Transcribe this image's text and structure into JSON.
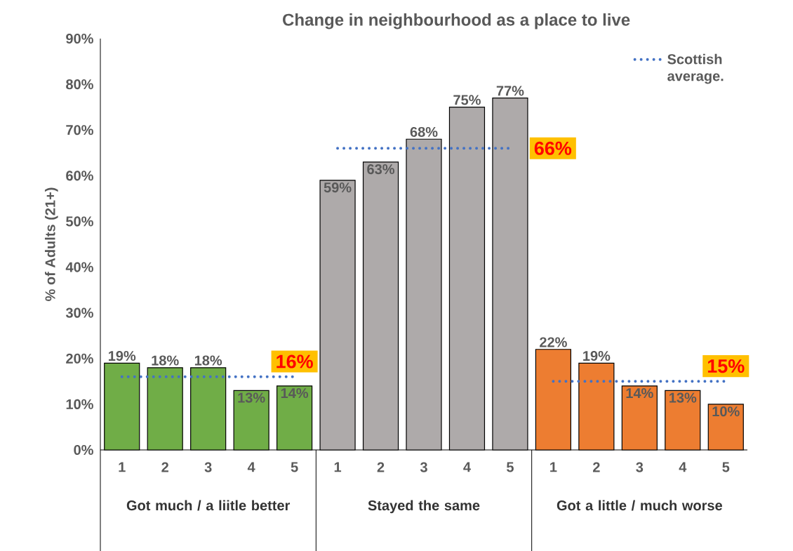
{
  "chart_data": {
    "type": "bar",
    "title": "Change in neighbourhood as a place to live",
    "ylabel": "% of Adults (21+)",
    "categories": [
      "1",
      "2",
      "3",
      "4",
      "5",
      "1",
      "2",
      "3",
      "4",
      "5",
      "1",
      "2",
      "3",
      "4",
      "5"
    ],
    "series": [
      {
        "values": [
          19,
          18,
          18,
          13,
          14,
          59,
          63,
          68,
          75,
          77,
          22,
          19,
          14,
          13,
          10
        ],
        "colors": [
          "#70ad47",
          "#70ad47",
          "#70ad47",
          "#70ad47",
          "#70ad47",
          "#aeaaaa",
          "#aeaaaa",
          "#aeaaaa",
          "#aeaaaa",
          "#aeaaaa",
          "#ed7d31",
          "#ed7d31",
          "#ed7d31",
          "#ed7d31",
          "#ed7d31"
        ],
        "value_labels": [
          "19%",
          "18%",
          "18%",
          "13%",
          "14%",
          "59%",
          "63%",
          "68%",
          "75%",
          "77%",
          "22%",
          "19%",
          "14%",
          "13%",
          "10%"
        ]
      },
      {
        "type": "line",
        "name": "Scottish average.",
        "color": "#4472c4",
        "line_style": "dotted",
        "values": [
          16,
          16,
          16,
          16,
          16,
          66,
          66,
          66,
          66,
          66,
          15,
          15,
          15,
          15,
          15
        ],
        "value_labels": [
          null,
          null,
          null,
          null,
          "16%",
          null,
          null,
          null,
          null,
          "66%",
          null,
          null,
          null,
          null,
          "15%"
        ]
      }
    ],
    "ylim": [
      0,
      90
    ],
    "yticks": [
      {
        "value": 0,
        "label": "0%"
      },
      {
        "value": 10,
        "label": "10%"
      },
      {
        "value": 20,
        "label": "20%"
      },
      {
        "value": 30,
        "label": "30%"
      },
      {
        "value": 40,
        "label": "40%"
      },
      {
        "value": 50,
        "label": "50%"
      },
      {
        "value": 60,
        "label": "60%"
      },
      {
        "value": 70,
        "label": "70%"
      },
      {
        "value": 80,
        "label": "80%"
      },
      {
        "value": 90,
        "label": "90%"
      }
    ],
    "annotations": [
      "Got much / a liitle better",
      "Stayed the same",
      "Got a little / much worse"
    ],
    "legend": "top right"
  }
}
